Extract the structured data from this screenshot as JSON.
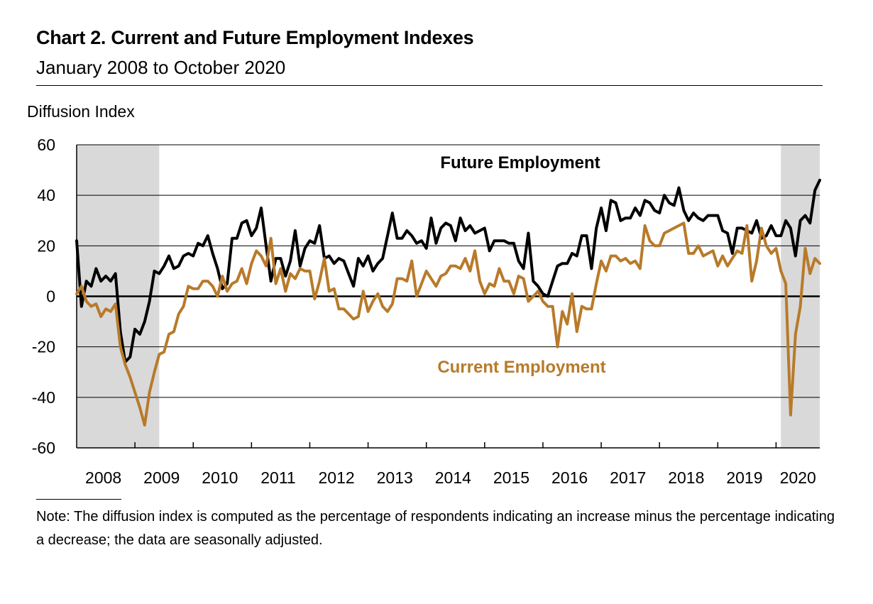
{
  "title": "Chart 2. Current and Future Employment Indexes",
  "subtitle": "January 2008 to October 2020",
  "note": "Note: The diffusion index is computed as the percentage of respondents indicating an increase minus the percentage indicating a decrease; the data are seasonally adjusted.",
  "chart_data": {
    "type": "line",
    "title": "Chart 2. Current and Future Employment Indexes",
    "subtitle": "January 2008 to October 2020",
    "ylabel": "Diffusion Index",
    "ylim": [
      -60,
      60
    ],
    "yticks": [
      60,
      40,
      20,
      0,
      -20,
      -40,
      -60
    ],
    "x_start": "2008-01",
    "x_end": "2020-10",
    "xtick_labels": [
      "2008",
      "2009",
      "2010",
      "2011",
      "2012",
      "2013",
      "2014",
      "2015",
      "2016",
      "2017",
      "2018",
      "2019",
      "2020"
    ],
    "shaded_periods": [
      {
        "start": "2008-01",
        "end": "2009-06"
      },
      {
        "start": "2020-02",
        "end": "2020-10"
      }
    ],
    "grid": "horizontal",
    "series": [
      {
        "name": "Future Employment",
        "color": "#000000",
        "values": [
          22,
          -4,
          6,
          4,
          11,
          6,
          8,
          6,
          9,
          -14,
          -26,
          -24,
          -13,
          -15,
          -10,
          -2,
          10,
          9,
          12,
          16,
          11,
          12,
          16,
          17,
          16,
          21,
          20,
          24,
          17,
          11,
          3,
          5,
          23,
          23,
          29,
          30,
          24,
          27,
          35,
          20,
          6,
          15,
          15,
          8,
          14,
          26,
          12,
          19,
          22,
          21,
          28,
          15,
          16,
          13,
          15,
          14,
          9,
          4,
          15,
          12,
          16,
          10,
          13,
          15,
          24,
          33,
          23,
          23,
          26,
          24,
          21,
          22,
          19,
          31,
          21,
          27,
          29,
          28,
          22,
          31,
          26,
          28,
          25,
          26,
          27,
          18,
          22,
          22,
          22,
          21,
          21,
          14,
          11,
          25,
          6,
          4,
          1,
          0,
          6,
          12,
          13,
          13,
          17,
          16,
          24,
          24,
          11,
          27,
          35,
          26,
          38,
          37,
          30,
          31,
          31,
          35,
          32,
          38,
          37,
          34,
          33,
          40,
          37,
          36,
          43,
          34,
          30,
          33,
          31,
          30,
          32,
          32,
          32,
          26,
          25,
          17,
          27,
          27,
          26,
          25,
          30,
          23,
          24,
          28,
          24,
          24,
          30,
          27,
          16,
          30,
          32,
          29,
          42,
          46
        ],
        "label_text": "Future Employment"
      },
      {
        "name": "Current Employment",
        "color": "#B87A2A",
        "values": [
          1,
          4,
          -2,
          -4,
          -3,
          -8,
          -5,
          -6,
          -3,
          -20,
          -27,
          -32,
          -38,
          -44,
          -51,
          -38,
          -30,
          -23,
          -22,
          -15,
          -14,
          -7,
          -4,
          4,
          3,
          3,
          6,
          6,
          4,
          0,
          8,
          2,
          5,
          6,
          11,
          5,
          13,
          18,
          16,
          12,
          23,
          5,
          11,
          2,
          9,
          7,
          11,
          10,
          10,
          -1,
          6,
          15,
          2,
          3,
          -5,
          -5,
          -7,
          -9,
          -8,
          2,
          -6,
          -2,
          1,
          -4,
          -6,
          -3,
          7,
          7,
          6,
          14,
          0,
          5,
          10,
          7,
          4,
          8,
          9,
          12,
          12,
          11,
          15,
          10,
          18,
          6,
          1,
          5,
          4,
          11,
          6,
          6,
          1,
          8,
          7,
          -2,
          0,
          2,
          -2,
          -4,
          -4,
          -20,
          -6,
          -11,
          1,
          -14,
          -4,
          -5,
          -5,
          5,
          14,
          10,
          16,
          16,
          14,
          15,
          13,
          14,
          11,
          28,
          22,
          20,
          20,
          25,
          26,
          27,
          28,
          29,
          17,
          17,
          20,
          16,
          17,
          18,
          12,
          16,
          12,
          15,
          18,
          17,
          28,
          6,
          14,
          27,
          20,
          17,
          19,
          10,
          5,
          -47,
          -15,
          -4,
          19,
          9,
          15,
          13
        ],
        "label_text": "Current Employment"
      }
    ]
  }
}
